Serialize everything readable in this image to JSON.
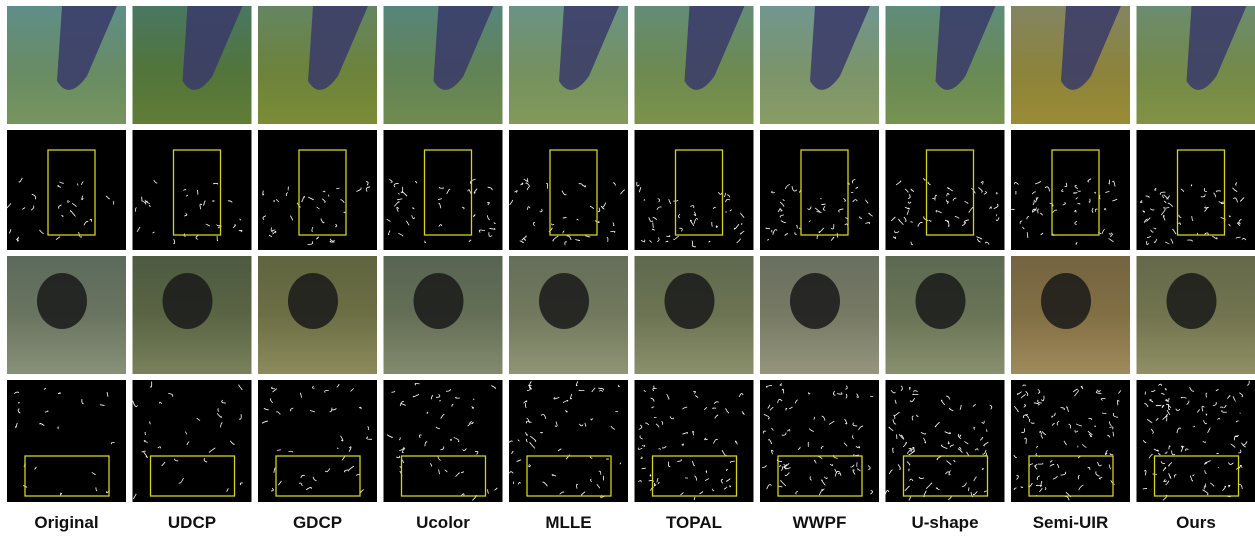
{
  "columns": [
    "Original",
    "UDCP",
    "GDCP",
    "Ucolor",
    "MLLE",
    "TOPAL",
    "WWPF",
    "U-shape",
    "Semi-UIR",
    "Ours"
  ]
}
